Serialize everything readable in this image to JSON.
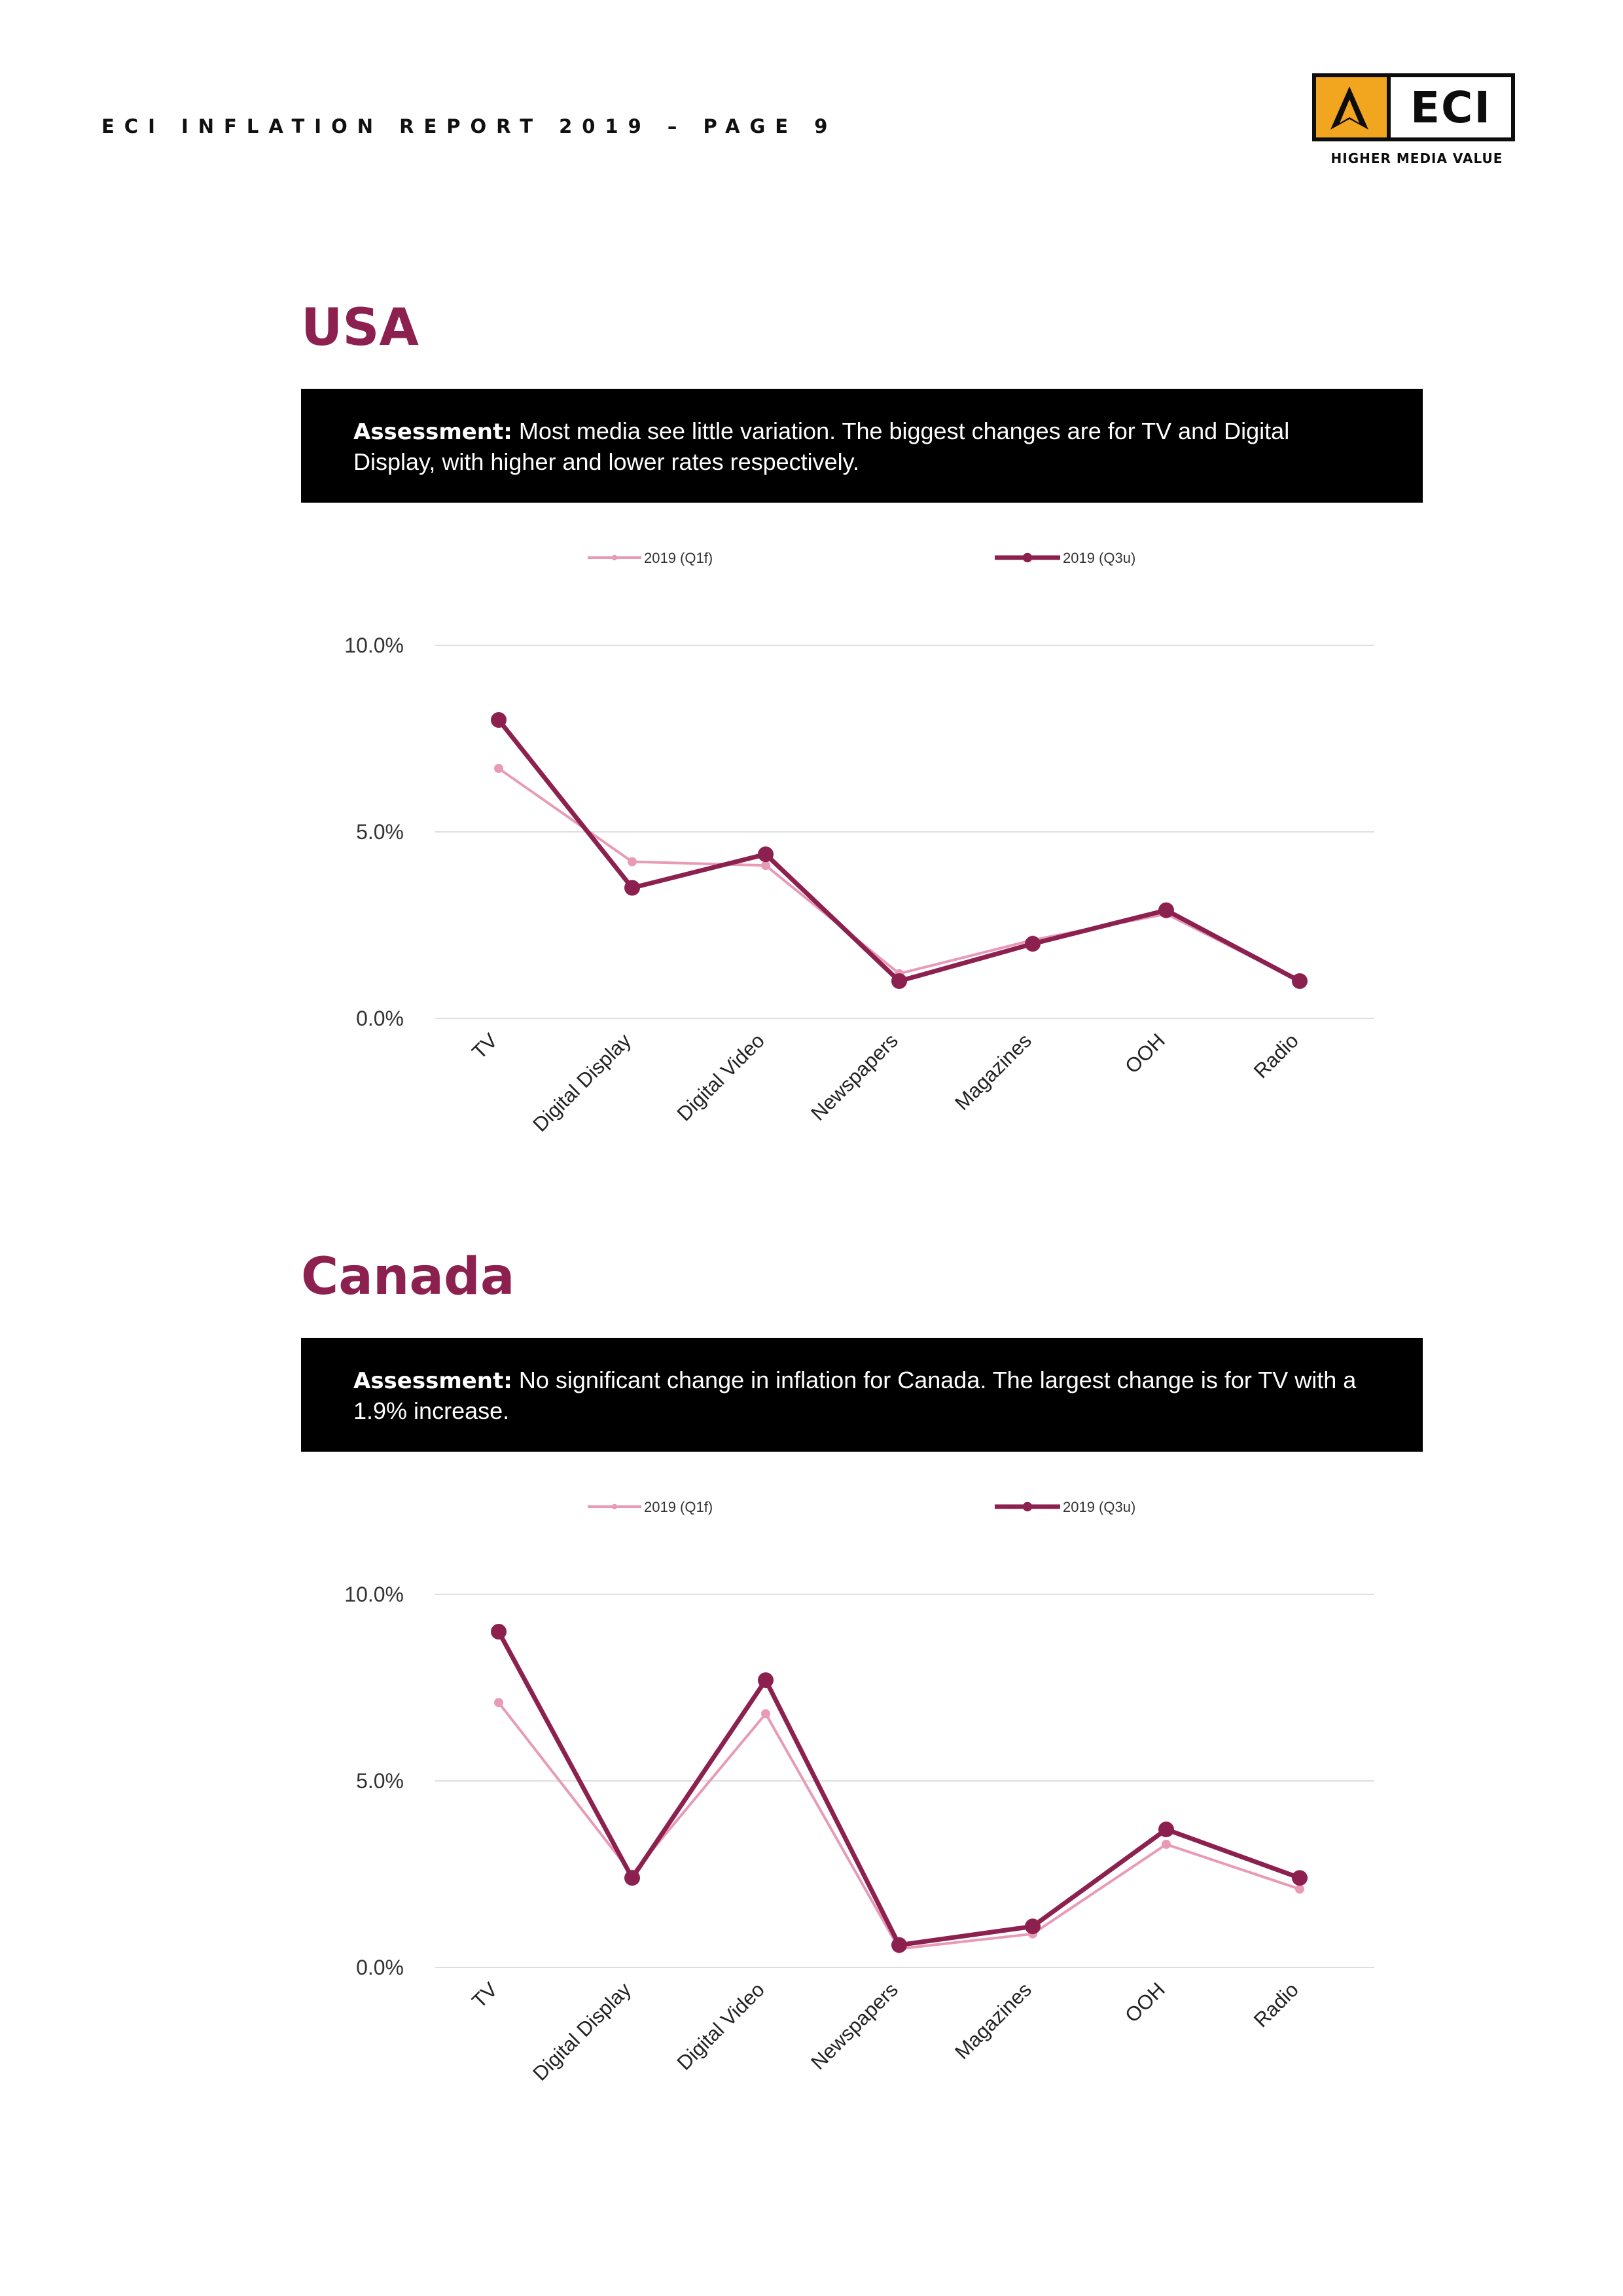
{
  "header": {
    "text": "ECI INFLATION REPORT 2019 – PAGE 9"
  },
  "logo": {
    "name": "ECI",
    "tagline": "HIGHER MEDIA VALUE",
    "accent": "#f2a51e"
  },
  "colors": {
    "q1": "#e89ab6",
    "q3": "#8c2150",
    "title": "#8c2150"
  },
  "sections": [
    {
      "title": "USA",
      "assessment_label": "Assessment:",
      "assessment_text": "Most media see little variation. The biggest changes are for TV and Digital Display, with higher and lower rates respectively."
    },
    {
      "title": "Canada",
      "assessment_label": "Assessment:",
      "assessment_text": "No significant change in inflation for Canada. The largest change is for TV with a 1.9% increase."
    }
  ],
  "chart_data": [
    {
      "type": "line",
      "categories": [
        "TV",
        "Digital Display",
        "Digital Video",
        "Newspapers",
        "Magazines",
        "OOH",
        "Radio"
      ],
      "series": [
        {
          "name": "2019 (Q1f)",
          "values": [
            6.7,
            4.2,
            4.1,
            1.2,
            2.1,
            2.8,
            1.0
          ]
        },
        {
          "name": "2019 (Q3u)",
          "values": [
            8.0,
            3.5,
            4.4,
            1.0,
            2.0,
            2.9,
            1.0
          ]
        }
      ],
      "yticks": [
        "0.0%",
        "5.0%",
        "10.0%"
      ],
      "ylim": [
        0,
        10
      ],
      "grid": true,
      "legend": "top"
    },
    {
      "type": "line",
      "categories": [
        "TV",
        "Digital Display",
        "Digital Video",
        "Newspapers",
        "Magazines",
        "OOH",
        "Radio"
      ],
      "series": [
        {
          "name": "2019 (Q1f)",
          "values": [
            7.1,
            2.5,
            6.8,
            0.5,
            0.9,
            3.3,
            2.1
          ]
        },
        {
          "name": "2019 (Q3u)",
          "values": [
            9.0,
            2.4,
            7.7,
            0.6,
            1.1,
            3.7,
            2.4
          ]
        }
      ],
      "yticks": [
        "0.0%",
        "5.0%",
        "10.0%"
      ],
      "ylim": [
        0,
        10
      ],
      "grid": true,
      "legend": "top"
    }
  ]
}
